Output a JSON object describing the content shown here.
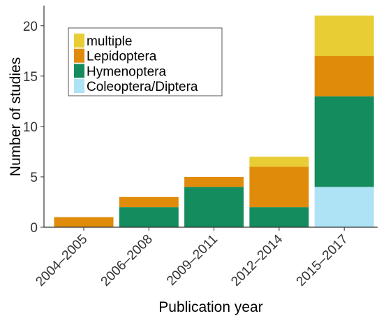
{
  "chart_data": {
    "type": "stacked_bar",
    "x_label": "Publication year",
    "y_label": "Number of studies",
    "categories": [
      "2004–2005",
      "2006–2008",
      "2009–2011",
      "2012–2014",
      "2015–2017"
    ],
    "series": [
      {
        "name": "Coleoptera/Diptera",
        "color": "#aee3f5",
        "values": [
          0,
          0,
          0,
          0,
          4
        ]
      },
      {
        "name": "Hymenoptera",
        "color": "#158c5e",
        "values": [
          0,
          2,
          4,
          2,
          9
        ]
      },
      {
        "name": "Lepidoptera",
        "color": "#e08c0a",
        "values": [
          1,
          1,
          1,
          4,
          4
        ]
      },
      {
        "name": "multiple",
        "color": "#e8cd35",
        "values": [
          0,
          0,
          0,
          1,
          4
        ]
      }
    ],
    "ylim": [
      0,
      22
    ],
    "yticks": [
      0,
      5,
      10,
      15,
      20
    ],
    "grid": false,
    "legend": "top-left"
  }
}
